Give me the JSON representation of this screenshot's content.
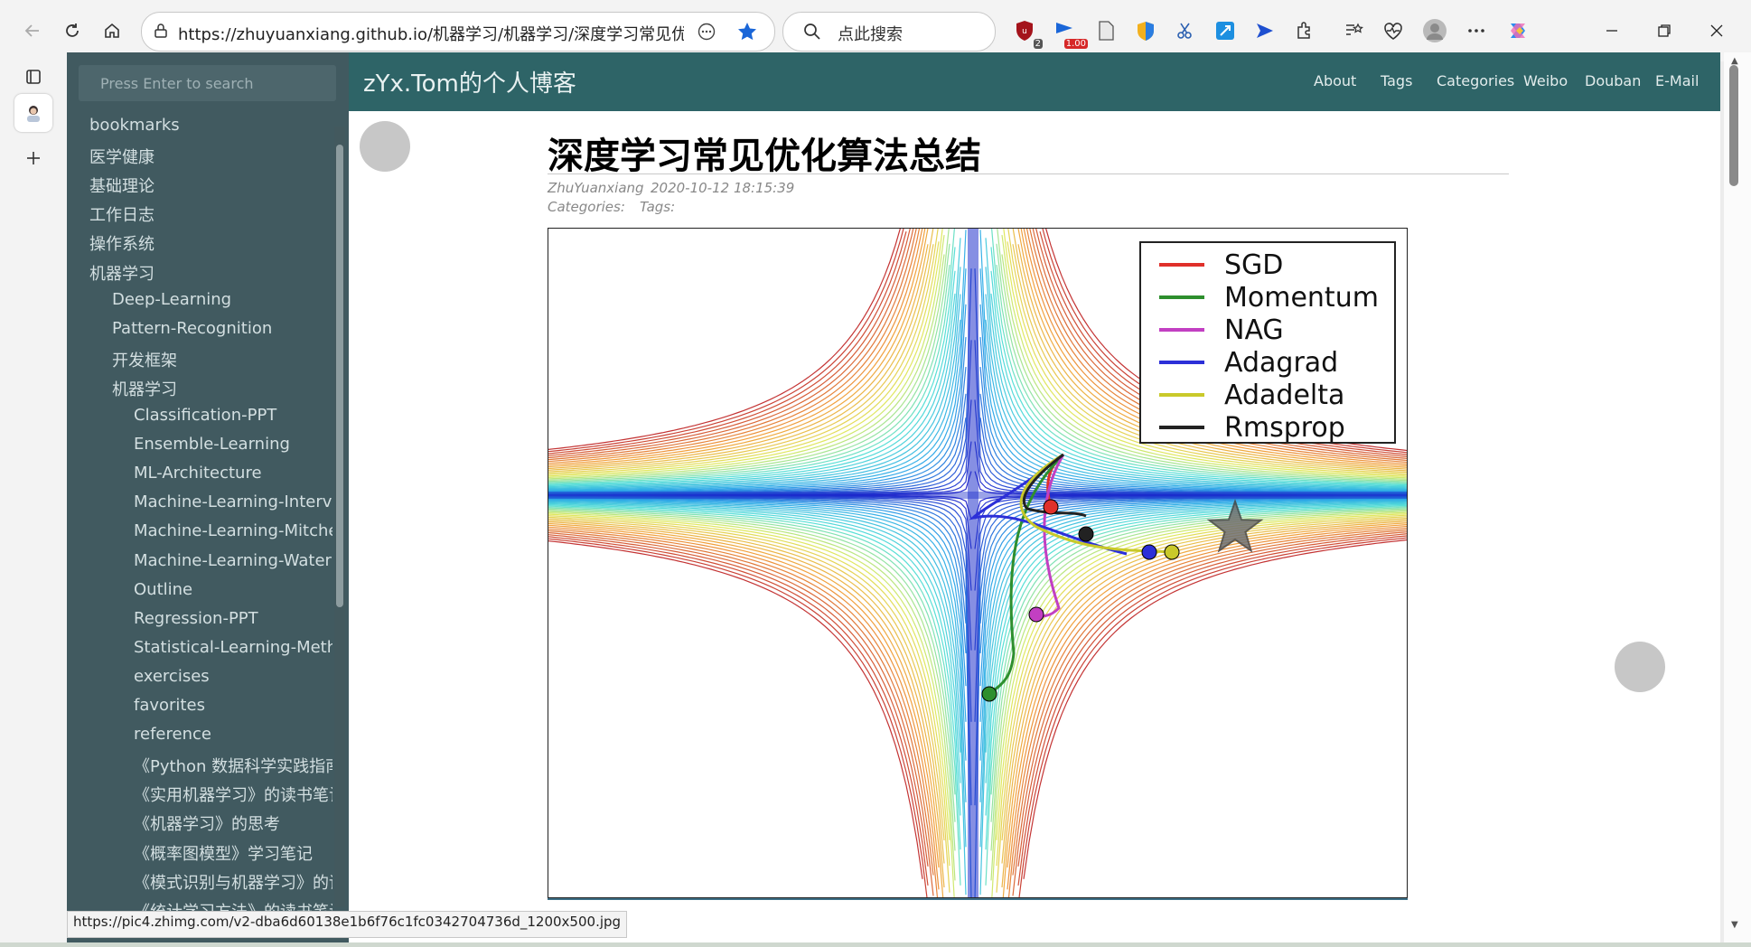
{
  "browser": {
    "url": "https://zhuyuanxiang.github.io/机器学习/机器学习/深度学习常见优化...",
    "search_placeholder": "点此搜索",
    "ext_badge_shield": "2",
    "ext_badge_rate": "1.00",
    "status_url": "https://pic4.zhimg.com/v2-dba6d60138e1b6f76c1fc0342704736d_1200x500.jpg"
  },
  "site": {
    "title": "zYx.Tom的个人博客",
    "nav": [
      "About",
      "Tags",
      "Categories",
      "Weibo",
      "Douban",
      "E-Mail"
    ]
  },
  "sidebar": {
    "search_placeholder": "Press Enter to search",
    "items": [
      {
        "label": "bookmarks",
        "level": 0
      },
      {
        "label": "医学健康",
        "level": 0
      },
      {
        "label": "基础理论",
        "level": 0
      },
      {
        "label": "工作日志",
        "level": 0
      },
      {
        "label": "操作系统",
        "level": 0
      },
      {
        "label": "机器学习",
        "level": 0
      },
      {
        "label": "Deep-Learning",
        "level": 1
      },
      {
        "label": "Pattern-Recognition",
        "level": 1
      },
      {
        "label": "开发框架",
        "level": 1
      },
      {
        "label": "机器学习",
        "level": 1
      },
      {
        "label": "Classification-PPT",
        "level": 2
      },
      {
        "label": "Ensemble-Learning",
        "level": 2
      },
      {
        "label": "ML-Architecture",
        "level": 2
      },
      {
        "label": "Machine-Learning-Interview",
        "level": 2
      },
      {
        "label": "Machine-Learning-Mitchell",
        "level": 2
      },
      {
        "label": "Machine-Learning-Watermelon",
        "level": 2
      },
      {
        "label": "Outline",
        "level": 2
      },
      {
        "label": "Regression-PPT",
        "level": 2
      },
      {
        "label": "Statistical-Learning-Method",
        "level": 2
      },
      {
        "label": "exercises",
        "level": 2
      },
      {
        "label": "favorites",
        "level": 2
      },
      {
        "label": "reference",
        "level": 2
      },
      {
        "label": "《Python 数据科学实践指南》",
        "level": 2
      },
      {
        "label": "《实用机器学习》的读书笔记",
        "level": 2
      },
      {
        "label": "《机器学习》的思考",
        "level": 2
      },
      {
        "label": "《概率图模型》学习笔记",
        "level": 2
      },
      {
        "label": "《模式识别与机器学习》的读书笔记",
        "level": 2
      },
      {
        "label": "《统计学习方法》的读书笔记",
        "level": 2
      }
    ]
  },
  "post": {
    "title": "深度学习常见优化算法总结",
    "author": "ZhuYuanxiang",
    "date": "2020-10-12 18:15:39",
    "categories_label": "Categories:",
    "tags_label": "Tags:"
  },
  "figure": {
    "legend": [
      {
        "name": "SGD",
        "color": "#e0302a"
      },
      {
        "name": "Momentum",
        "color": "#2e8f2e"
      },
      {
        "name": "NAG",
        "color": "#c23fc2"
      },
      {
        "name": "Adagrad",
        "color": "#2c2fd8"
      },
      {
        "name": "Adadelta",
        "color": "#c9c92a"
      },
      {
        "name": "Rmsprop",
        "color": "#222222"
      }
    ],
    "star_color": "#6e6e6e"
  },
  "colors": {
    "sidebar_bg": "#415a60",
    "header_bg": "#2e6467"
  }
}
